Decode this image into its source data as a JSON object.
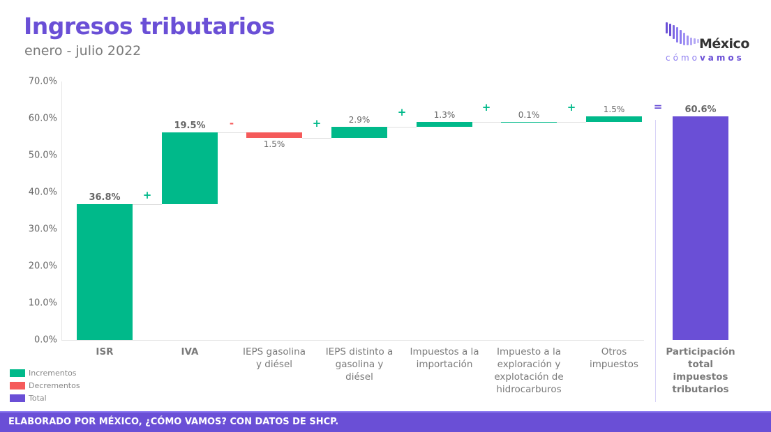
{
  "header": {
    "title": "Ingresos tributarios",
    "subtitle": "enero - julio 2022"
  },
  "logo": {
    "word": "México",
    "sub_light": "cómo",
    "sub_bold": "vamos"
  },
  "colors": {
    "increment": "#00b98a",
    "decrement": "#f55a5a",
    "total": "#6a4fd6",
    "title": "#6a4fd6"
  },
  "legend": {
    "items": [
      {
        "label": "Incrementos",
        "color": "#00b98a"
      },
      {
        "label": "Decrementos",
        "color": "#f55a5a"
      },
      {
        "label": "Total",
        "color": "#6a4fd6"
      }
    ]
  },
  "footer": {
    "text": "ELABORADO POR MÉXICO, ¿CÓMO VAMOS? CON DATOS DE SHCP."
  },
  "chart_data": {
    "type": "bar",
    "subtype": "waterfall",
    "title": "Ingresos tributarios",
    "subtitle": "enero - julio 2022",
    "xlabel": "",
    "ylabel": "",
    "ylim": [
      0,
      70
    ],
    "yticks": [
      "0.0%",
      "10.0%",
      "20.0%",
      "30.0%",
      "40.0%",
      "50.0%",
      "60.0%",
      "70.0%"
    ],
    "grid": false,
    "legend_position": "bottom-left",
    "categories": [
      "ISR",
      "IVA",
      "IEPS gasolina y diésel",
      "IEPS distinto a gasolina y diésel",
      "Impuestos a la importación",
      "Impuesto a la exploración y explotación de hidrocarburos",
      "Otros impuestos",
      "Participación total impuestos tributarios"
    ],
    "values": [
      36.8,
      19.5,
      -1.5,
      2.9,
      1.3,
      0.1,
      1.5,
      60.6
    ],
    "labels": [
      "36.8%",
      "19.5%",
      "1.5%",
      "2.9%",
      "1.3%",
      "0.1%",
      "1.5%",
      "60.6%"
    ],
    "signs": [
      "",
      "+",
      "-",
      "+",
      "+",
      "+",
      "+",
      "="
    ],
    "kinds": [
      "increment",
      "increment",
      "decrement",
      "increment",
      "increment",
      "increment",
      "increment",
      "total"
    ],
    "category_lines": [
      [
        "ISR"
      ],
      [
        "IVA"
      ],
      [
        "IEPS gasolina",
        "y diésel"
      ],
      [
        "IEPS distinto a",
        "gasolina y",
        "diésel"
      ],
      [
        "Impuestos a la",
        "importación"
      ],
      [
        "Impuesto a la",
        "exploración y",
        "explotación de",
        "hidrocarburos"
      ],
      [
        "Otros",
        "impuestos"
      ],
      [
        "Participación",
        "total",
        "impuestos",
        "tributarios"
      ]
    ]
  }
}
